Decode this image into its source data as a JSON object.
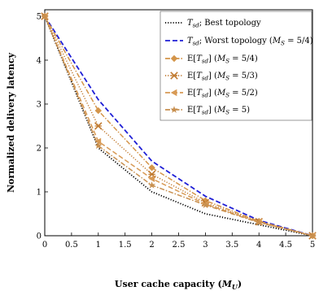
{
  "chart_data": {
    "type": "line",
    "xlabel": "User cache capacity (M_U)",
    "ylabel": "Normalized delivery latency",
    "xlim": [
      0,
      5
    ],
    "ylim": [
      0,
      5
    ],
    "x_ticks": [
      "0",
      "0.5",
      "1",
      "1.5",
      "2",
      "2.5",
      "3",
      "3.5",
      "4",
      "4.5",
      "5"
    ],
    "y_ticks": [
      "0",
      "1",
      "2",
      "3",
      "4",
      "5"
    ],
    "grid": false,
    "legend_position": "top-right",
    "series": [
      {
        "name": "T_sd; Best topology",
        "style": "dotted",
        "color": "#000000",
        "marker": "none",
        "x": [
          0,
          1,
          2,
          3,
          4,
          5
        ],
        "y": [
          5.0,
          2.0,
          1.0,
          0.5,
          0.25,
          0.0
        ]
      },
      {
        "name": "T_sd; Worst topology (M_S = 5/4)",
        "style": "dashed",
        "color": "#1f1fd6",
        "marker": "none",
        "x": [
          0,
          1,
          2,
          3,
          4,
          5
        ],
        "y": [
          5.0,
          3.1,
          1.7,
          0.9,
          0.35,
          0.0
        ]
      },
      {
        "name": "E[T_sd] (M_S = 5/4)",
        "style": "dashdot",
        "color": "#d4954a",
        "marker": "diamond",
        "x": [
          0,
          1,
          2,
          3,
          4,
          5
        ],
        "y": [
          5.0,
          2.85,
          1.55,
          0.8,
          0.33,
          0.0
        ]
      },
      {
        "name": "E[T_sd] (M_S = 5/3)",
        "style": "dotted",
        "color": "#c07a30",
        "marker": "x",
        "x": [
          0,
          1,
          2,
          3,
          4,
          5
        ],
        "y": [
          5.0,
          2.5,
          1.4,
          0.75,
          0.32,
          0.0
        ]
      },
      {
        "name": "E[T_sd] (M_S = 5/2)",
        "style": "dashed",
        "color": "#d89a55",
        "marker": "triangle-left",
        "x": [
          0,
          1,
          2,
          3,
          4,
          5
        ],
        "y": [
          5.0,
          2.15,
          1.3,
          0.72,
          0.31,
          0.0
        ]
      },
      {
        "name": "E[T_sd] (M_S = 5)",
        "style": "dashdot",
        "color": "#c89050",
        "marker": "star",
        "x": [
          0,
          1,
          2,
          3,
          4,
          5
        ],
        "y": [
          5.0,
          2.05,
          1.15,
          0.7,
          0.3,
          0.0
        ]
      }
    ]
  },
  "legend": {
    "entries": [
      {
        "main": "T",
        "sub": "sd",
        "rest": "; Best topology",
        "prefix": "",
        "ms": ""
      },
      {
        "main": "T",
        "sub": "sd",
        "rest": "; Worst topology (",
        "prefix": "",
        "ms": "5/4"
      },
      {
        "main": "T",
        "sub": "sd",
        "rest": "] (",
        "prefix": "E[",
        "ms": "5/4"
      },
      {
        "main": "T",
        "sub": "sd",
        "rest": "] (",
        "prefix": "E[",
        "ms": "5/3"
      },
      {
        "main": "T",
        "sub": "sd",
        "rest": "] (",
        "prefix": "E[",
        "ms": "5/2"
      },
      {
        "main": "T",
        "sub": "sd",
        "rest": "] (",
        "prefix": "E[",
        "ms": "5"
      }
    ]
  }
}
